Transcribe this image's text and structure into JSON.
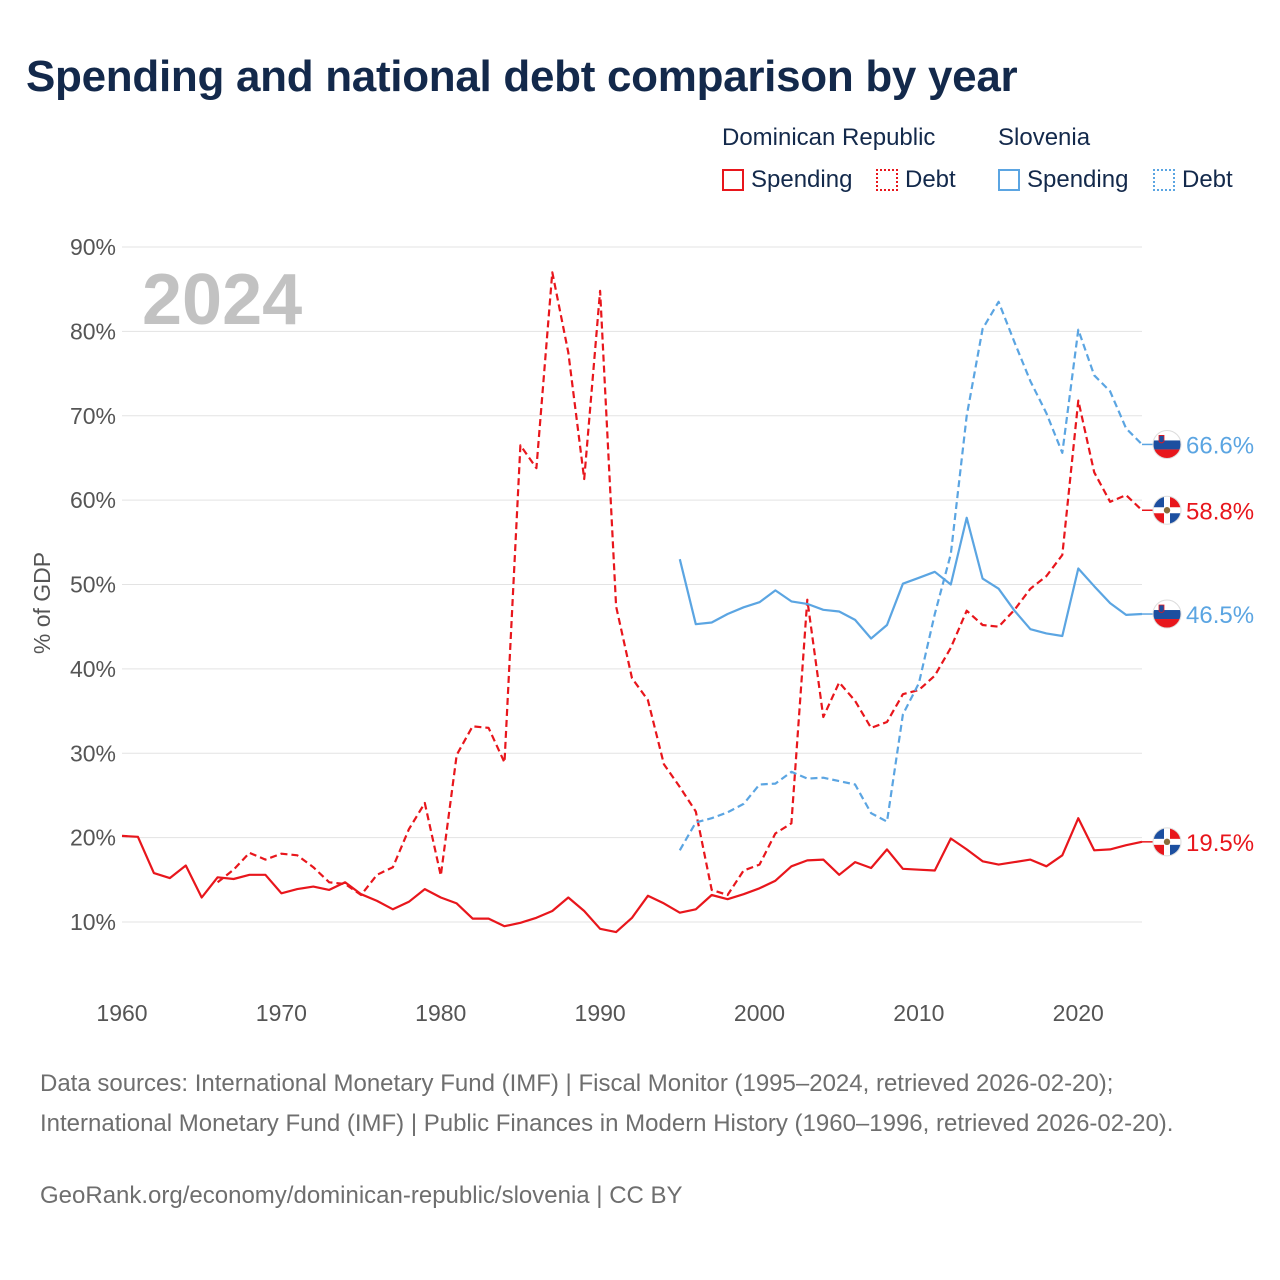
{
  "title": "Spending and national debt comparison by year",
  "legend": {
    "groups": [
      {
        "name": "Dominican Republic",
        "spending_label": "Spending",
        "debt_label": "Debt",
        "color": "#e8161c"
      },
      {
        "name": "Slovenia",
        "spending_label": "Spending",
        "debt_label": "Debt",
        "color": "#5ba5e2"
      }
    ]
  },
  "year_watermark": "2024",
  "sources": "Data sources: International Monetary Fund (IMF) | Fiscal Monitor (1995–2024, retrieved 2026-02-20); International Monetary Fund (IMF) | Public Finances in Modern History (1960–1996, retrieved 2026-02-20).",
  "footer": "GeoRank.org/economy/dominican-republic/slovenia | CC BY",
  "chart_data": {
    "type": "line",
    "title": "Spending and national debt comparison by year",
    "xlabel": "",
    "ylabel": "% of GDP",
    "xlim": [
      1960,
      2024
    ],
    "ylim": [
      5,
      90
    ],
    "xticks": [
      1960,
      1970,
      1980,
      1990,
      2000,
      2010,
      2020
    ],
    "yticks": [
      10,
      20,
      30,
      40,
      50,
      60,
      70,
      80,
      90
    ],
    "ytick_labels": [
      "10%",
      "20%",
      "30%",
      "40%",
      "50%",
      "60%",
      "70%",
      "80%",
      "90%"
    ],
    "grid": true,
    "series": [
      {
        "name": "Dominican Republic Spending",
        "country": "Dominican Republic",
        "dash": false,
        "color": "#e8161c",
        "end_label": "19.5%",
        "flag": "dominican-republic",
        "start_year": 1960,
        "values": [
          20.2,
          20.1,
          15.8,
          15.2,
          16.7,
          12.9,
          15.3,
          15.1,
          15.6,
          15.6,
          13.4,
          13.9,
          14.2,
          13.8,
          14.7,
          13.3,
          12.5,
          11.5,
          12.4,
          13.9,
          12.9,
          12.2,
          10.4,
          10.4,
          9.5,
          9.9,
          10.5,
          11.3,
          12.9,
          11.3,
          9.2,
          8.8,
          10.5,
          13.1,
          12.2,
          11.1,
          11.5,
          13.2,
          12.7,
          13.3,
          14.0,
          14.9,
          16.6,
          17.3,
          17.4,
          15.6,
          17.1,
          16.4,
          18.6,
          16.3,
          16.2,
          16.1,
          19.9,
          18.6,
          17.2,
          16.8,
          17.1,
          17.4,
          16.6,
          17.9,
          22.3,
          18.5,
          18.6,
          19.1,
          19.5
        ]
      },
      {
        "name": "Dominican Republic Debt",
        "country": "Dominican Republic",
        "dash": true,
        "color": "#e8161c",
        "end_label": "58.8%",
        "flag": "dominican-republic",
        "start_year": 1966,
        "values": [
          14.7,
          16.2,
          18.2,
          17.4,
          18.1,
          17.9,
          16.5,
          14.7,
          14.5,
          13.2,
          15.6,
          16.5,
          21.0,
          24.1,
          15.5,
          29.8,
          33.2,
          33.0,
          28.9,
          66.5,
          63.8,
          87.0,
          77.5,
          62.5,
          84.8,
          47.4,
          38.9,
          36.3,
          28.7,
          26.0,
          23.1,
          13.8,
          13.2,
          16.1,
          16.8,
          20.5,
          21.7,
          48.2,
          34.3,
          38.4,
          36.2,
          33.0,
          33.7,
          37.0,
          37.5,
          39.2,
          42.5,
          46.9,
          45.2,
          45.0,
          47.0,
          49.5,
          51.0,
          53.5,
          71.8,
          63.3,
          59.8,
          60.6,
          58.8
        ]
      },
      {
        "name": "Slovenia Spending",
        "country": "Slovenia",
        "dash": false,
        "color": "#5ba5e2",
        "end_label": "46.5%",
        "flag": "slovenia",
        "start_year": 1995,
        "values": [
          53.0,
          45.3,
          45.5,
          46.5,
          47.3,
          47.9,
          49.3,
          48.0,
          47.7,
          47.0,
          46.8,
          45.8,
          43.6,
          45.2,
          50.1,
          50.8,
          51.5,
          50.0,
          57.9,
          50.7,
          49.5,
          46.9,
          44.7,
          44.2,
          43.9,
          51.9,
          49.8,
          47.8,
          46.4,
          46.5
        ]
      },
      {
        "name": "Slovenia Debt",
        "country": "Slovenia",
        "dash": true,
        "color": "#5ba5e2",
        "end_label": "66.6%",
        "flag": "slovenia",
        "start_year": 1995,
        "values": [
          18.5,
          21.8,
          22.3,
          23.0,
          24.0,
          26.3,
          26.4,
          27.8,
          27.0,
          27.1,
          26.7,
          26.3,
          22.9,
          21.9,
          34.6,
          38.3,
          46.5,
          53.6,
          70.0,
          80.3,
          83.5,
          78.7,
          74.1,
          70.3,
          65.6,
          80.2,
          74.8,
          72.9,
          68.5,
          66.6
        ]
      }
    ]
  }
}
